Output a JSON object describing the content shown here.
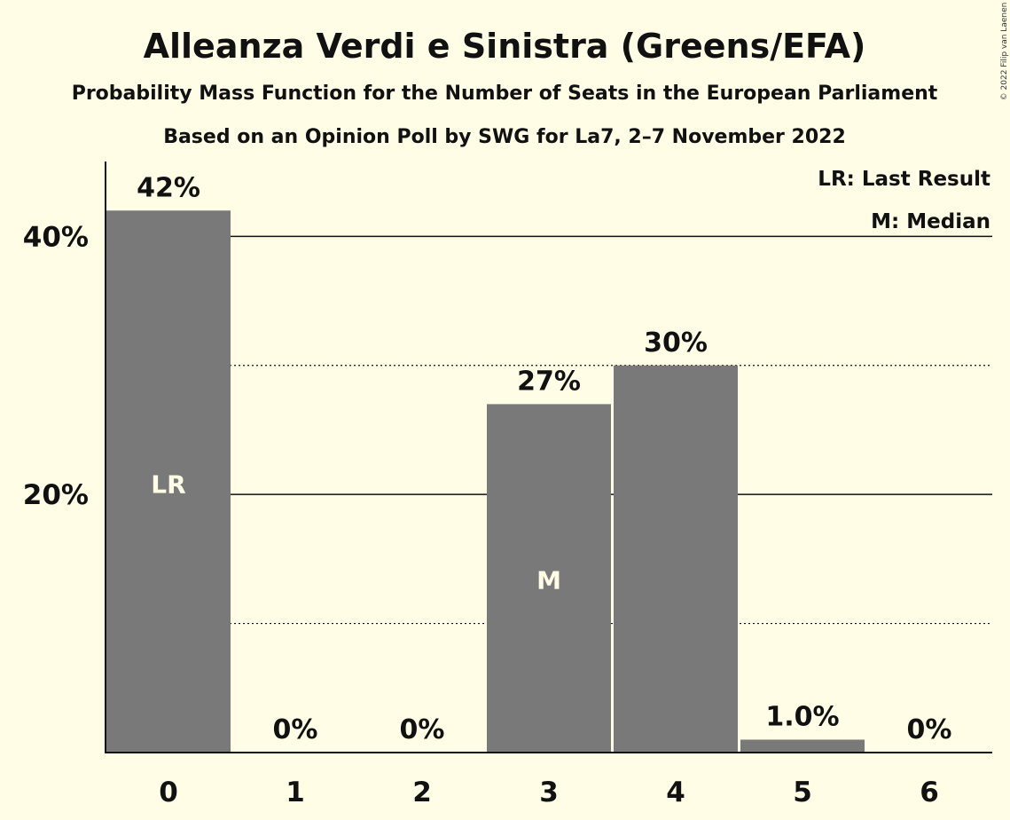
{
  "chart_data": {
    "type": "bar",
    "title": "Alleanza Verdi e Sinistra (Greens/EFA)",
    "subtitle": "Probability Mass Function for the Number of Seats in the European Parliament",
    "subtitle2": "Based on an Opinion Poll by SWG for La7, 2–7 November 2022",
    "copyright": "© 2022 Filip van Laenen",
    "categories": [
      "0",
      "1",
      "2",
      "3",
      "4",
      "5",
      "6"
    ],
    "values": [
      42,
      0,
      0,
      27,
      30,
      1.0,
      0
    ],
    "value_labels": [
      "42%",
      "0%",
      "0%",
      "27%",
      "30%",
      "1.0%",
      "0%"
    ],
    "markers": [
      "LR",
      "",
      "",
      "M",
      "",
      "",
      ""
    ],
    "ylim": [
      0,
      45.8
    ],
    "yticks": [
      20,
      40
    ],
    "ytick_labels": [
      "20%",
      "40%"
    ],
    "minor_gridlines": [
      10,
      30
    ],
    "legend": [
      "LR: Last Result",
      "M: Median"
    ],
    "legend_placement": "top-right",
    "colors": {
      "background": "#FFFDE6",
      "bar": "#797979",
      "text": "#111111",
      "marker_text": "#FFFDE6"
    }
  }
}
